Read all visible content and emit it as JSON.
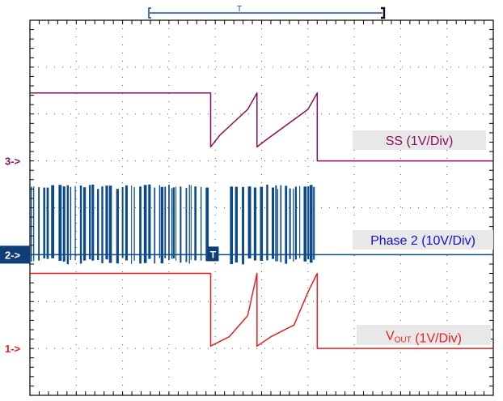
{
  "chart_data": {
    "type": "line",
    "title": "",
    "xlabel": "",
    "ylabel": "",
    "grid": true,
    "xlim": [
      0,
      10
    ],
    "ylim": [
      0,
      8
    ],
    "x_divisions": 10,
    "y_divisions": 8,
    "trigger_marker": "T",
    "channels": [
      {
        "id": "3",
        "marker_label": "3->",
        "color": "#8b0f5a",
        "legend_parts": [
          {
            "text": "SS (1V/Div)",
            "sub": false
          }
        ],
        "legend_bg": "#e8e8e8",
        "legend_fg": "#8b0f5a",
        "baseline_div": 5.0,
        "x": [
          0,
          3.9,
          3.9,
          4.1,
          4.7,
          4.9,
          4.9,
          5.1,
          6.0,
          6.2,
          6.2,
          10
        ],
        "y": [
          6.45,
          6.45,
          5.3,
          5.55,
          6.1,
          6.45,
          5.3,
          5.45,
          6.1,
          6.45,
          5.0,
          5.0
        ]
      },
      {
        "id": "2",
        "marker_label": "2->",
        "color": "#0b4a88",
        "legend_parts": [
          {
            "text": "Phase 2 (10V/Div)",
            "sub": false
          }
        ],
        "legend_bg": "#e8e8e8",
        "legend_fg": "#1010d0",
        "baseline_div": 3.0,
        "burst_high_div": 4.5,
        "burst_windows": [
          [
            0,
            3.9
          ],
          [
            4.3,
            5.1
          ],
          [
            5.2,
            6.15
          ]
        ],
        "x": [
          0,
          10
        ],
        "y": [
          3.0,
          3.0
        ]
      },
      {
        "id": "1",
        "marker_label": "1->",
        "color": "#e82020",
        "legend_parts": [
          {
            "text": "V",
            "sub": false
          },
          {
            "text": "OUT",
            "sub": true
          },
          {
            "text": " (1V/Div)",
            "sub": false
          }
        ],
        "legend_bg": "#e8e8e8",
        "legend_fg": "#e82020",
        "baseline_div": 1.0,
        "x": [
          0,
          3.9,
          3.9,
          4.3,
          4.7,
          4.9,
          4.9,
          5.2,
          5.7,
          6.0,
          6.2,
          6.2,
          10
        ],
        "y": [
          2.6,
          2.6,
          1.05,
          1.25,
          1.7,
          2.6,
          1.05,
          1.25,
          1.5,
          2.2,
          2.6,
          1.0,
          1.0
        ]
      }
    ]
  }
}
